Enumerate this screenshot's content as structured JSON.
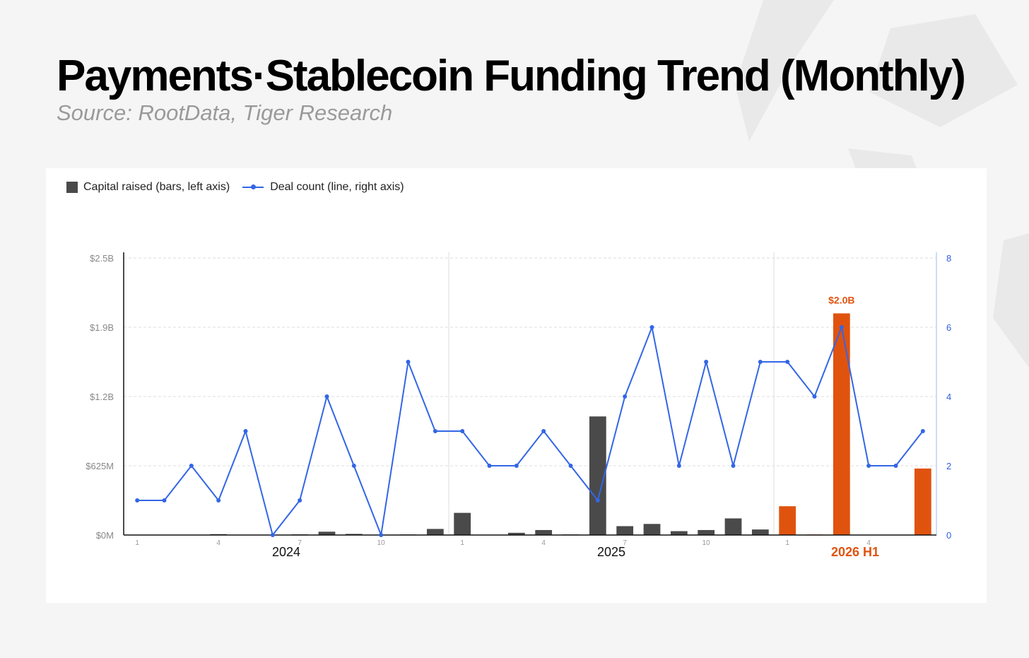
{
  "title": "Payments·Stablecoin Funding Trend (Monthly)",
  "subtitle": "Source: RootData, Tiger Research",
  "colors": {
    "bar": "#4a4a4a",
    "bar_highlight": "#e0530f",
    "line": "#3366e6"
  },
  "chart_data": {
    "type": "bar",
    "legend": [
      "Capital raised (bars, left axis)",
      "Deal count (line, right axis)"
    ],
    "legend_placement": "top-left",
    "grid": true,
    "months": [
      "1",
      "2",
      "3",
      "4",
      "5",
      "6",
      "7",
      "8",
      "9",
      "10",
      "11",
      "12",
      "1",
      "2",
      "3",
      "4",
      "5",
      "6",
      "7",
      "8",
      "9",
      "10",
      "11",
      "12",
      "1",
      "2",
      "3",
      "4",
      "5",
      "6"
    ],
    "month_tick_labels": [
      "1",
      "",
      "",
      "4",
      "",
      "",
      "7",
      "",
      "",
      "10",
      "",
      "",
      "1",
      "",
      "",
      "4",
      "",
      "",
      "7",
      "",
      "",
      "10",
      "",
      "",
      "1",
      "",
      "",
      "4",
      "",
      ""
    ],
    "year_groups": [
      {
        "label": "2024",
        "start": 0,
        "end": 12,
        "highlight": false
      },
      {
        "label": "2025",
        "start": 12,
        "end": 24,
        "highlight": false
      },
      {
        "label": "2026 H1",
        "start": 24,
        "end": 30,
        "highlight": true
      }
    ],
    "series": [
      {
        "name": "Capital raised (bars, left axis)",
        "type": "bar",
        "axis": "left",
        "unit": "USD millions",
        "values": [
          0,
          0,
          0,
          8,
          0,
          0,
          6,
          30,
          10,
          0,
          5,
          55,
          200,
          0,
          20,
          45,
          5,
          1070,
          80,
          100,
          35,
          45,
          150,
          50,
          260,
          5,
          2000,
          0,
          0,
          600
        ],
        "highlight_from_index": 24
      },
      {
        "name": "Deal count (line, right axis)",
        "type": "line",
        "axis": "right",
        "values": [
          1,
          1,
          2,
          1,
          3,
          0,
          1,
          4,
          2,
          0,
          5,
          3,
          3,
          2,
          2,
          3,
          2,
          1,
          4,
          6,
          2,
          5,
          2,
          5,
          5,
          4,
          6,
          2,
          2,
          3
        ]
      }
    ],
    "left_axis": {
      "ylim": [
        0,
        2500
      ],
      "ticks": [
        0,
        625,
        1250,
        1875,
        2500
      ],
      "tick_labels": [
        "$0M",
        "$625M",
        "$1.2B",
        "$1.9B",
        "$2.5B"
      ]
    },
    "right_axis": {
      "ylim": [
        0,
        8
      ],
      "ticks": [
        0,
        2,
        4,
        6,
        8
      ],
      "tick_labels": [
        "0",
        "2",
        "4",
        "6",
        "8"
      ]
    },
    "annotations": [
      {
        "index": 26,
        "text": "$2.0B"
      }
    ]
  }
}
